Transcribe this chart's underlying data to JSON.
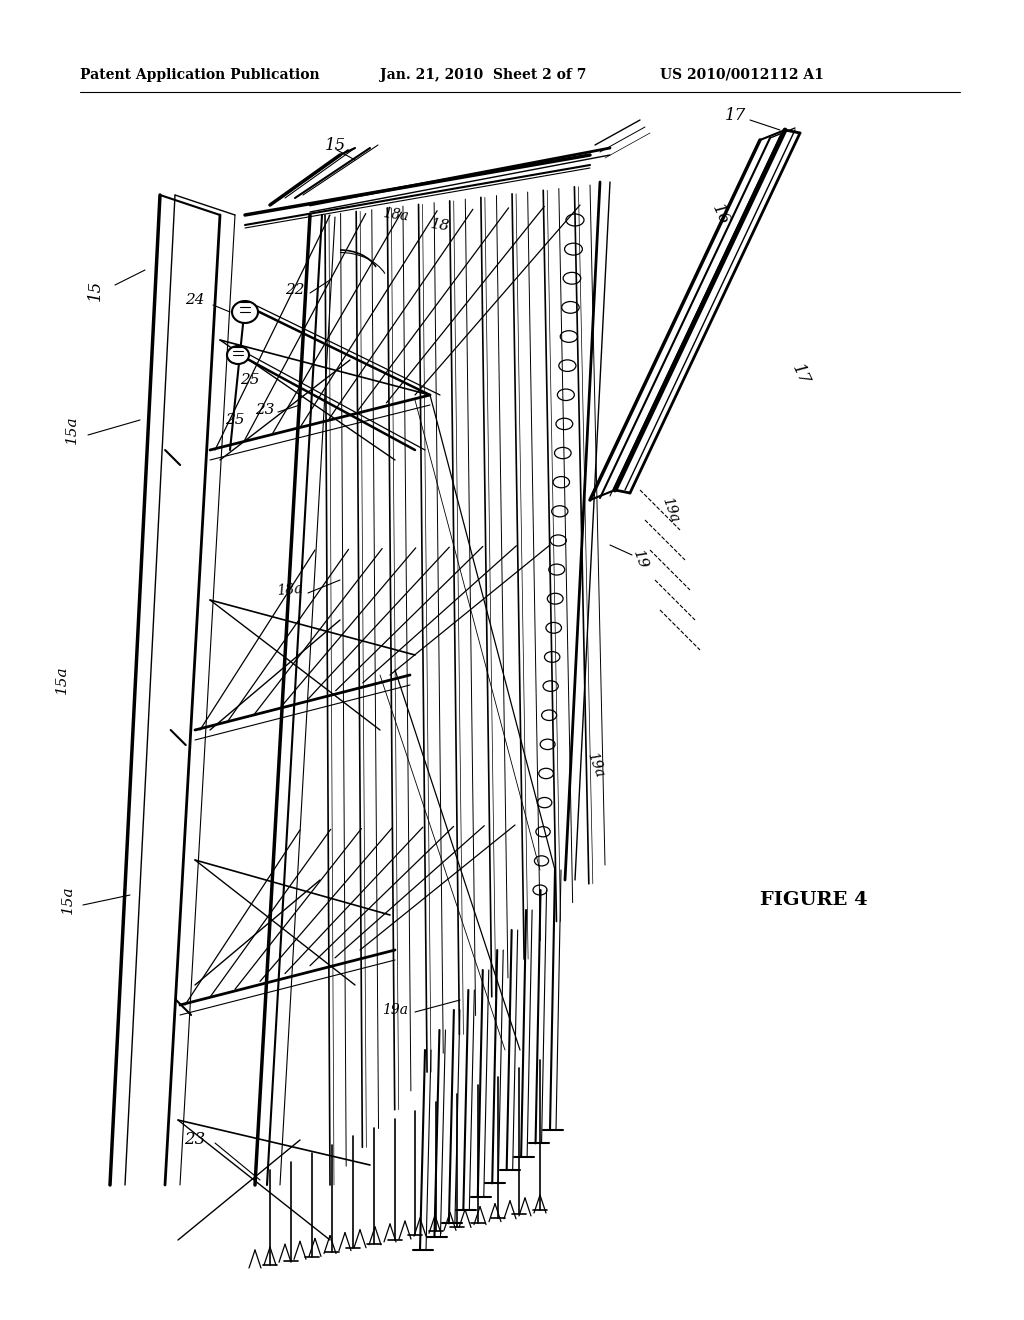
{
  "header_left": "Patent Application Publication",
  "header_mid": "Jan. 21, 2010  Sheet 2 of 7",
  "header_right": "US 2010/0012112 A1",
  "figure_label": "FIGURE 4",
  "background_color": "#ffffff",
  "line_color": "#000000"
}
